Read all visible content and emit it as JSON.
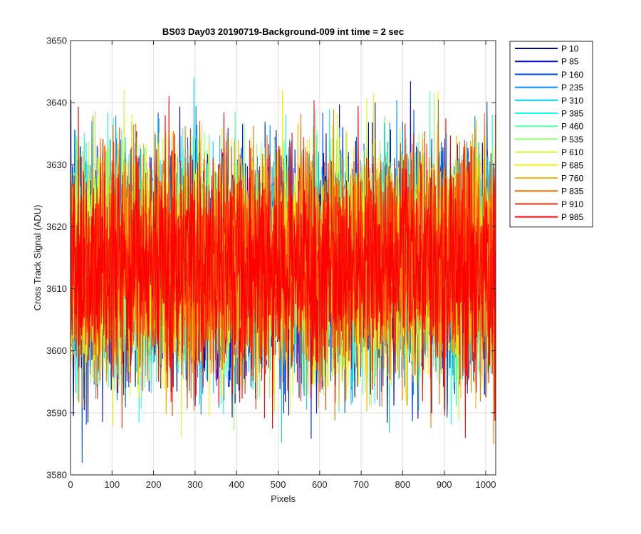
{
  "chart_data": {
    "type": "line",
    "title": "BS03 Day03 20190719-Background-009 int time = 2 sec",
    "xlabel": "Pixels",
    "ylabel": "Cross Track Signal (ADU)",
    "xlim": [
      0,
      1024
    ],
    "ylim": [
      3580,
      3650
    ],
    "xticks": [
      0,
      100,
      200,
      300,
      400,
      500,
      600,
      700,
      800,
      900,
      1000
    ],
    "yticks": [
      3580,
      3590,
      3600,
      3610,
      3620,
      3630,
      3640,
      3650
    ],
    "grid": true,
    "legend_position": "outside-top-right",
    "noise_model": {
      "mean": 3614,
      "typical_min": 3596,
      "typical_max": 3632,
      "points_per_series": 1024
    },
    "series": [
      {
        "name": "P 10",
        "color": "#00009f"
      },
      {
        "name": "P 85",
        "color": "#0010ff"
      },
      {
        "name": "P 160",
        "color": "#0050ff"
      },
      {
        "name": "P 235",
        "color": "#0090ff"
      },
      {
        "name": "P 310",
        "color": "#00cfff"
      },
      {
        "name": "P 385",
        "color": "#10ffef"
      },
      {
        "name": "P 460",
        "color": "#50ffaf"
      },
      {
        "name": "P 535",
        "color": "#90ff6f"
      },
      {
        "name": "P 610",
        "color": "#cfff30"
      },
      {
        "name": "P 685",
        "color": "#ffef00"
      },
      {
        "name": "P 760",
        "color": "#ffb000"
      },
      {
        "name": "P 835",
        "color": "#ff7000"
      },
      {
        "name": "P 910",
        "color": "#ff3000"
      },
      {
        "name": "P 985",
        "color": "#ff0000"
      }
    ],
    "extremes": [
      {
        "series": "P 160",
        "x": 28,
        "y": 3582
      },
      {
        "series": "P 310",
        "x": 297,
        "y": 3644
      },
      {
        "series": "P 685",
        "x": 510,
        "y": 3642
      },
      {
        "series": "P 985",
        "x": 950,
        "y": 3586
      },
      {
        "series": "P 835",
        "x": 1018,
        "y": 3585
      },
      {
        "series": "P 610",
        "x": 267,
        "y": 3586
      },
      {
        "series": "P 85",
        "x": 733,
        "y": 3640
      },
      {
        "series": "P 835",
        "x": 1022,
        "y": 3638
      }
    ]
  }
}
